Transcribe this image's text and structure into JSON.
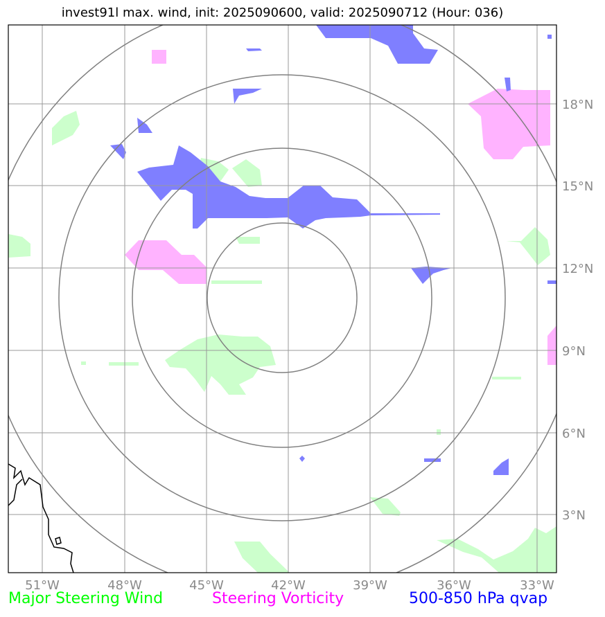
{
  "title": "invest91l max. wind, init: 2025090600, valid: 2025090712 (Hour: 036)",
  "lon_labels": [
    "51°W",
    "48°W",
    "45°W",
    "42°W",
    "39°W",
    "36°W",
    "33°W"
  ],
  "lat_labels": [
    "18°N",
    "15°N",
    "12°N",
    "9°N",
    "6°N",
    "3°N"
  ],
  "legend": {
    "wind": "Major Steering Wind",
    "vorticity": "Steering Vorticity",
    "qvap": "500-850 hPa qvap"
  },
  "colors": {
    "wind": "#ccffcc",
    "vorticity": "#ffb3ff",
    "qvap": "#7f7fff",
    "grid": "#9a9a9a",
    "rings": "#808080",
    "coast": "#000000"
  }
}
